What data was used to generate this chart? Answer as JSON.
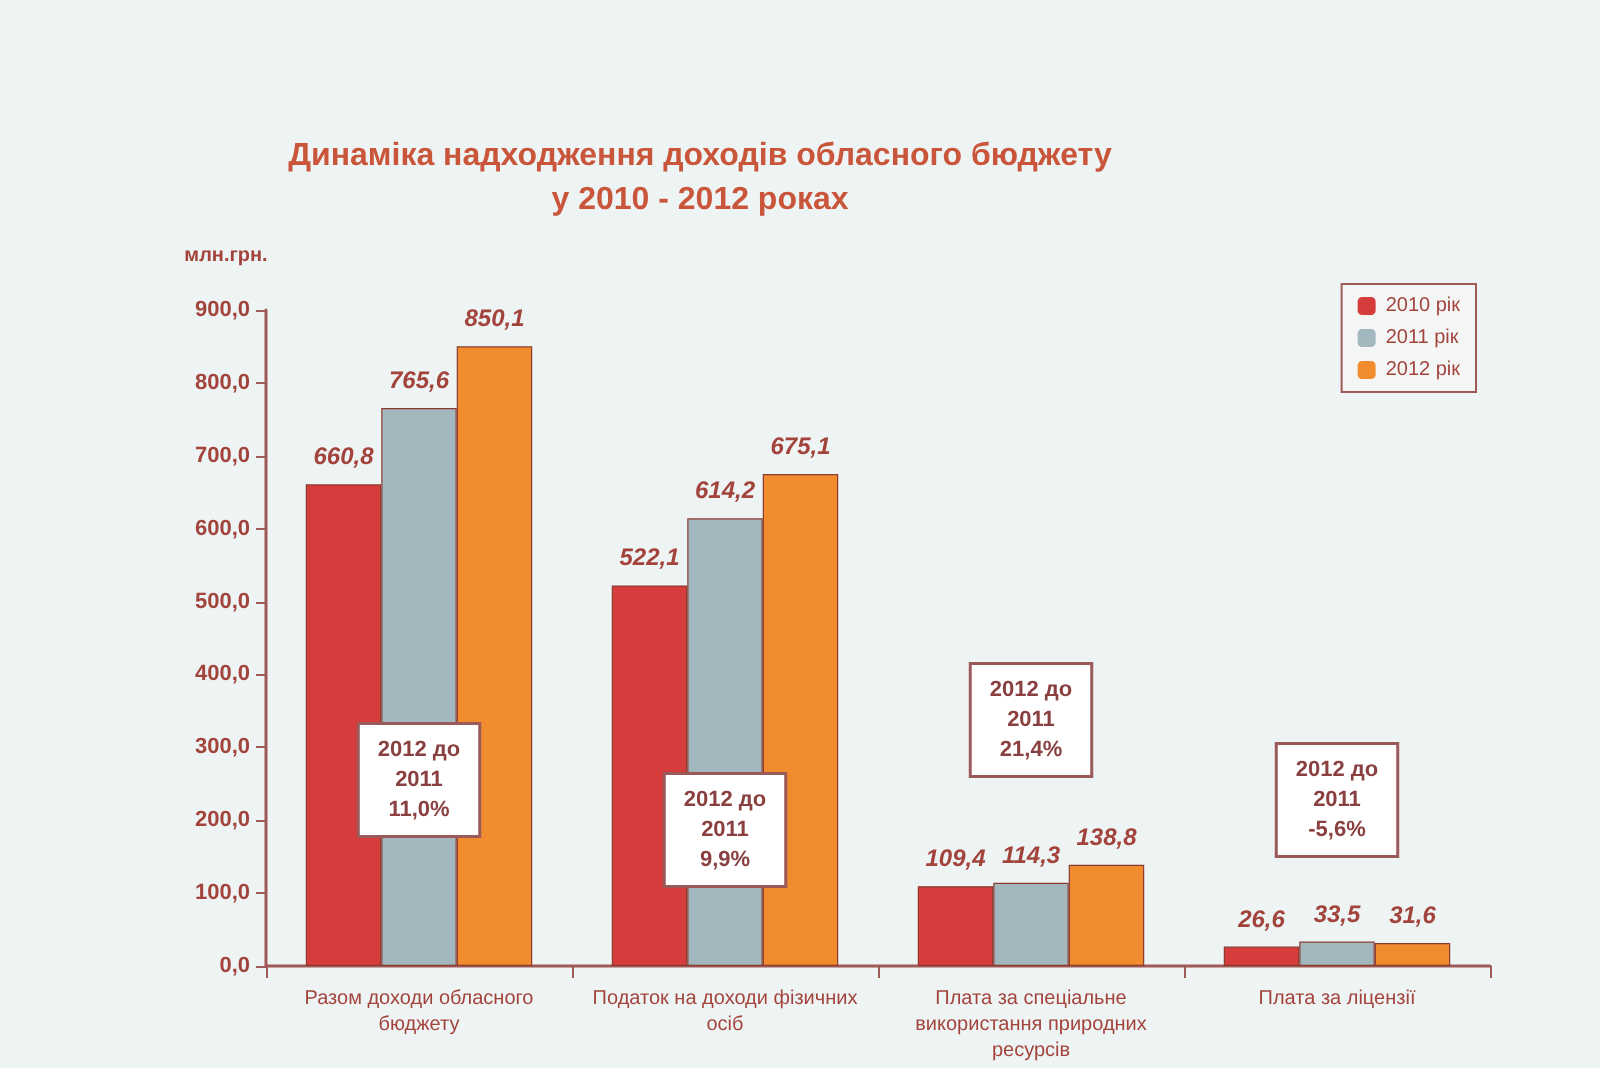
{
  "chart_data": {
    "type": "bar",
    "title": "Динаміка надходження доходів обласного бюджету\nу 2010 - 2012 роках",
    "ylabel": "млн.грн.",
    "categories": [
      "Разом доходи обласного бюджету",
      "Податок на доходи фізичних осіб",
      "Плата за спеціальне використання природних ресурсів",
      "Плата за ліцензії"
    ],
    "series": [
      {
        "name": "2010 рік",
        "color": "#d63c3c",
        "values": [
          660.8,
          522.1,
          109.4,
          26.6
        ],
        "value_labels": [
          "660,8",
          "522,1",
          "109,4",
          "26,6"
        ]
      },
      {
        "name": "2011 рік",
        "color": "#a2b7be",
        "values": [
          765.6,
          614.2,
          114.3,
          33.5
        ],
        "value_labels": [
          "765,6",
          "614,2",
          "114,3",
          "33,5"
        ]
      },
      {
        "name": "2012 рік",
        "color": "#f08c2e",
        "values": [
          850.1,
          675.1,
          138.8,
          31.6
        ],
        "value_labels": [
          "850,1",
          "675,1",
          "138,8",
          "31,6"
        ]
      }
    ],
    "ylim": [
      0,
      900
    ],
    "yticks": [
      {
        "value": 0,
        "label": "0,0"
      },
      {
        "value": 100,
        "label": "100,0"
      },
      {
        "value": 200,
        "label": "200,0"
      },
      {
        "value": 300,
        "label": "300,0"
      },
      {
        "value": 400,
        "label": "400,0"
      },
      {
        "value": 500,
        "label": "500,0"
      },
      {
        "value": 600,
        "label": "600,0"
      },
      {
        "value": 700,
        "label": "700,0"
      },
      {
        "value": 800,
        "label": "800,0"
      },
      {
        "value": 900,
        "label": "900,0"
      }
    ],
    "annotations": [
      "2012 до\n2011\n11,0%",
      "2012 до\n2011\n9,9%",
      "2012 до\n2011\n21,4%",
      "2012 до\n2011\n-5,6%"
    ],
    "legend": "top right"
  }
}
